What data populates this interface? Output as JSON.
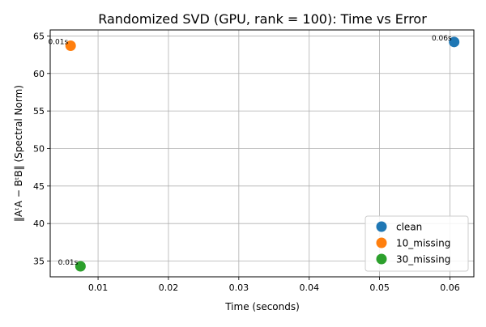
{
  "chart_data": {
    "type": "scatter",
    "title": "Randomized SVD (GPU, rank = 100): Time vs Error",
    "xlabel": "Time (seconds)",
    "ylabel": "‖AᵗA − BᵗB‖ (Spectral Norm)",
    "xlim": [
      0.0032,
      0.0634
    ],
    "ylim": [
      32.9,
      65.8
    ],
    "x_ticks": [
      {
        "value": 0.01,
        "label": "0.01"
      },
      {
        "value": 0.02,
        "label": "0.02"
      },
      {
        "value": 0.03,
        "label": "0.03"
      },
      {
        "value": 0.04,
        "label": "0.04"
      },
      {
        "value": 0.05,
        "label": "0.05"
      },
      {
        "value": 0.06,
        "label": "0.06"
      }
    ],
    "y_ticks": [
      {
        "value": 35,
        "label": "35"
      },
      {
        "value": 40,
        "label": "40"
      },
      {
        "value": 45,
        "label": "45"
      },
      {
        "value": 50,
        "label": "50"
      },
      {
        "value": 55,
        "label": "55"
      },
      {
        "value": 60,
        "label": "60"
      },
      {
        "value": 65,
        "label": "65"
      }
    ],
    "grid": true,
    "legend_position": "lower-right",
    "series": [
      {
        "name": "clean",
        "color": "#1f77b4",
        "points": [
          {
            "x": 0.0606,
            "y": 64.2,
            "label": "0.06s"
          }
        ]
      },
      {
        "name": "10_missing",
        "color": "#ff7f0e",
        "points": [
          {
            "x": 0.0061,
            "y": 63.7,
            "label": "0.01s"
          }
        ]
      },
      {
        "name": "30_missing",
        "color": "#2ca02c",
        "points": [
          {
            "x": 0.0075,
            "y": 34.3,
            "label": "0.01s"
          }
        ]
      }
    ]
  }
}
